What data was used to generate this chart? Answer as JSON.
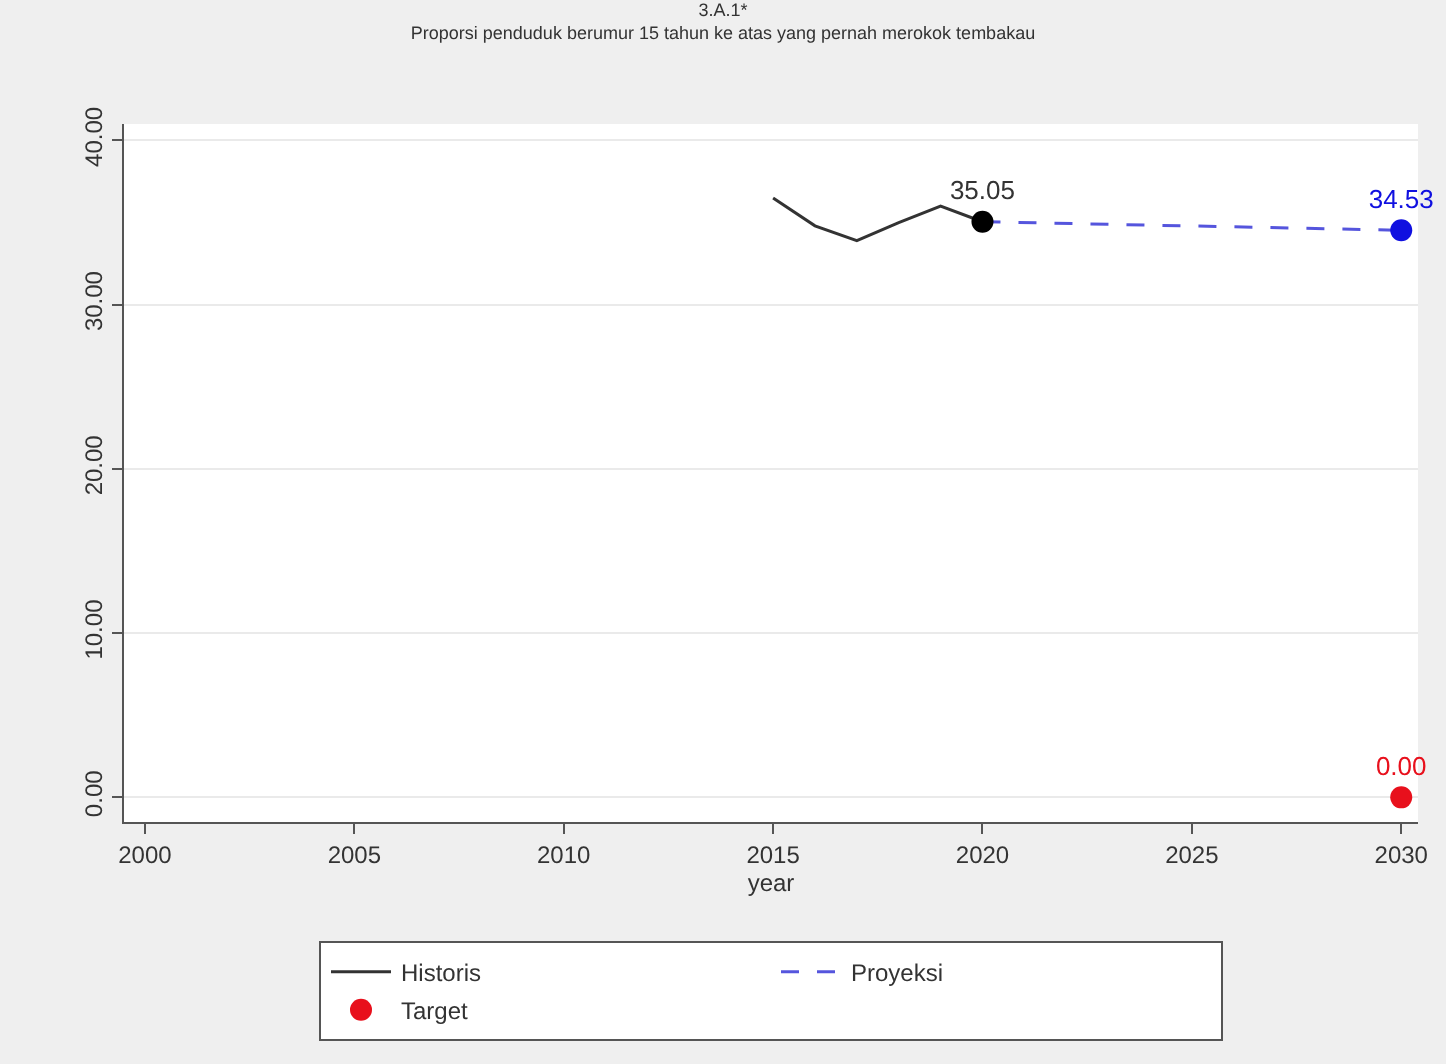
{
  "chart_data": {
    "type": "line",
    "title": "3.A.1*",
    "subtitle": "Proporsi penduduk berumur 15 tahun ke atas yang pernah merokok tembakau",
    "xlabel": "year",
    "xlim": [
      1999.5,
      2030.4
    ],
    "xticks": [
      2000,
      2005,
      2010,
      2015,
      2020,
      2025,
      2030
    ],
    "ylim": [
      -1.5,
      41
    ],
    "yticks": [
      {
        "value": 0,
        "label": "0.00"
      },
      {
        "value": 10,
        "label": "10.00"
      },
      {
        "value": 20,
        "label": "20.00"
      },
      {
        "value": 30,
        "label": "30.00"
      },
      {
        "value": 40,
        "label": "40.00"
      }
    ],
    "grid": "y",
    "legend": "bottom",
    "series": [
      {
        "name": "Historis",
        "type": "line",
        "color": "#333333",
        "line_style": "solid",
        "marker": "none",
        "x": [
          2015,
          2016,
          2017,
          2018,
          2019,
          2020
        ],
        "values": [
          36.5,
          34.8,
          33.9,
          35.0,
          36.0,
          35.05
        ]
      },
      {
        "name": "Proyeksi",
        "type": "line",
        "color": "#5555dd",
        "line_style": "dashed",
        "marker": "none",
        "x": [
          2020,
          2030
        ],
        "values": [
          35.05,
          34.53
        ]
      },
      {
        "type": "scatter",
        "color": "#000000",
        "marker": "circle",
        "x": [
          2020
        ],
        "values": [
          35.05
        ],
        "value_labels": [
          "35.05"
        ]
      },
      {
        "type": "scatter",
        "color": "#1010e0",
        "marker": "circle",
        "x": [
          2030
        ],
        "values": [
          34.53
        ],
        "value_labels": [
          "34.53"
        ]
      },
      {
        "name": "Target",
        "type": "scatter",
        "color": "#e8101c",
        "marker": "circle",
        "x": [
          2030
        ],
        "values": [
          0
        ],
        "value_labels": [
          "0.00"
        ]
      }
    ]
  }
}
